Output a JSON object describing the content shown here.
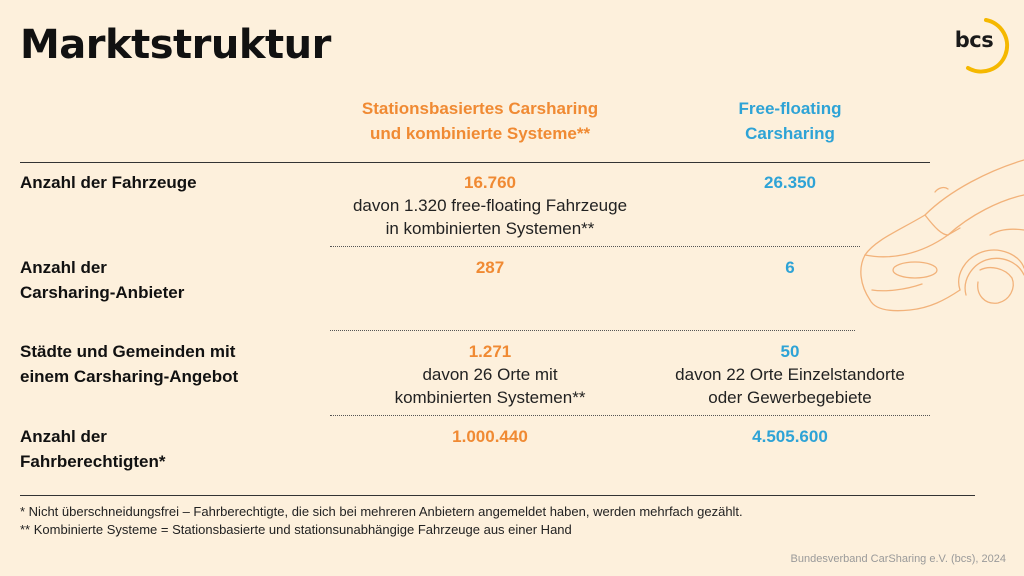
{
  "title": "Marktstruktur",
  "logo": {
    "text": "bcs",
    "accent_color": "#f5b800"
  },
  "columns": {
    "stationsbasiert": {
      "line1": "Stationsbasiertes Carsharing",
      "line2": "und kombinierte Systeme**",
      "color": "#f08a33"
    },
    "free_floating": {
      "line1": "Free-floating",
      "line2": "Carsharing",
      "color": "#2ea3d6"
    }
  },
  "rows": [
    {
      "label_lines": [
        "Anzahl der Fahrzeuge"
      ],
      "stationsbasiert": {
        "value": "16.760",
        "sub": [
          "davon 1.320 free-floating Fahrzeuge",
          "in kombinierten Systemen**"
        ]
      },
      "free_floating": {
        "value": "26.350",
        "sub": []
      }
    },
    {
      "label_lines": [
        "Anzahl der",
        "Carsharing-Anbieter"
      ],
      "stationsbasiert": {
        "value": "287",
        "sub": []
      },
      "free_floating": {
        "value": "6",
        "sub": []
      }
    },
    {
      "label_lines": [
        "Städte und Gemeinden mit",
        "einem Carsharing-Angebot"
      ],
      "stationsbasiert": {
        "value": "1.271",
        "sub": [
          "davon 26 Orte mit",
          "kombinierten Systemen**"
        ]
      },
      "free_floating": {
        "value": "50",
        "sub": [
          "davon 22 Orte Einzelstandorte",
          "oder Gewerbegebiete"
        ]
      }
    },
    {
      "label_lines": [
        "Anzahl der",
        "Fahrberechtigten*"
      ],
      "stationsbasiert": {
        "value": "1.000.440",
        "sub": []
      },
      "free_floating": {
        "value": "4.505.600",
        "sub": []
      }
    }
  ],
  "footnotes": [
    "* Nicht überschneidungsfrei – Fahrberechtigte, die sich bei mehreren Anbietern angemeldet haben, werden mehrfach gezählt.",
    "** Kombinierte Systeme = Stationsbasierte und stationsunabhängige Fahrzeuge aus einer Hand"
  ],
  "source": "Bundesverband CarSharing e.V. (bcs), 2024"
}
